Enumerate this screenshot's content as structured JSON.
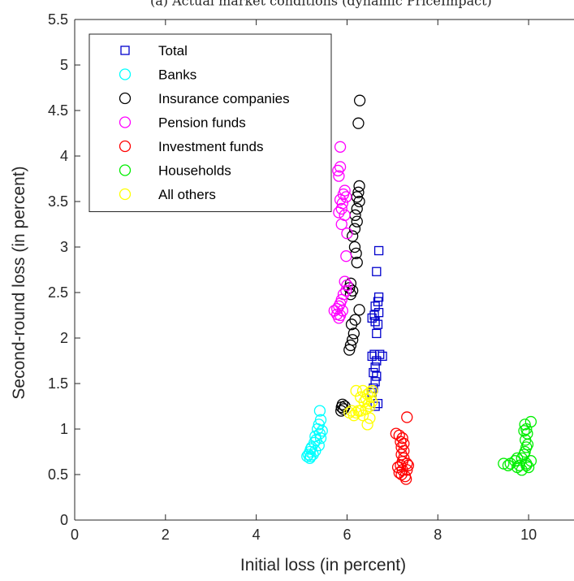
{
  "chart_data": {
    "type": "scatter",
    "title": "(a) Actual market conditions (dynamic PriceImpact)",
    "xlabel": "Initial loss (in percent)",
    "ylabel": "Second-round loss (in percent)",
    "xlim": [
      0,
      11
    ],
    "ylim": [
      0,
      5.5
    ],
    "xticks": [
      0,
      2,
      4,
      6,
      8,
      10
    ],
    "yticks": [
      0,
      0.5,
      1,
      1.5,
      2,
      2.5,
      3,
      3.5,
      4,
      4.5,
      5,
      5.5
    ],
    "xtick_labels": [
      "0",
      "2",
      "4",
      "6",
      "8",
      "10"
    ],
    "ytick_labels": [
      "0",
      "0.5",
      "1",
      "1.5",
      "2",
      "2.5",
      "3",
      "3.5",
      "4",
      "4.5",
      "5",
      "5.5"
    ],
    "grid": false,
    "legend_position": "top-left",
    "series": [
      {
        "name": "Total",
        "marker": "square",
        "color": "#0000cc",
        "points": [
          [
            6.7,
            2.96
          ],
          [
            6.65,
            2.73
          ],
          [
            6.7,
            2.45
          ],
          [
            6.68,
            2.4
          ],
          [
            6.62,
            2.35
          ],
          [
            6.7,
            2.28
          ],
          [
            6.6,
            2.25
          ],
          [
            6.55,
            2.22
          ],
          [
            6.62,
            2.18
          ],
          [
            6.68,
            2.15
          ],
          [
            6.65,
            2.05
          ],
          [
            6.72,
            1.82
          ],
          [
            6.6,
            1.82
          ],
          [
            6.55,
            1.8
          ],
          [
            6.65,
            1.75
          ],
          [
            6.62,
            1.68
          ],
          [
            6.58,
            1.62
          ],
          [
            6.65,
            1.58
          ],
          [
            6.62,
            1.52
          ],
          [
            6.58,
            1.45
          ],
          [
            6.55,
            1.4
          ],
          [
            6.68,
            1.28
          ],
          [
            6.62,
            1.25
          ],
          [
            6.78,
            1.8
          ]
        ]
      },
      {
        "name": "Banks",
        "marker": "circle",
        "color": "#00ffff",
        "points": [
          [
            5.4,
            1.2
          ],
          [
            5.42,
            1.1
          ],
          [
            5.38,
            1.05
          ],
          [
            5.35,
            1.0
          ],
          [
            5.4,
            0.95
          ],
          [
            5.3,
            0.92
          ],
          [
            5.32,
            0.88
          ],
          [
            5.28,
            0.85
          ],
          [
            5.22,
            0.8
          ],
          [
            5.2,
            0.78
          ],
          [
            5.18,
            0.75
          ],
          [
            5.15,
            0.72
          ],
          [
            5.2,
            0.7
          ],
          [
            5.12,
            0.7
          ],
          [
            5.18,
            0.68
          ],
          [
            5.25,
            0.72
          ],
          [
            5.3,
            0.76
          ],
          [
            5.38,
            0.82
          ],
          [
            5.42,
            0.9
          ],
          [
            5.45,
            0.98
          ]
        ]
      },
      {
        "name": "Insurance companies",
        "marker": "circle",
        "color": "#000000",
        "points": [
          [
            6.28,
            4.61
          ],
          [
            6.25,
            4.36
          ],
          [
            6.27,
            3.67
          ],
          [
            6.25,
            3.6
          ],
          [
            6.22,
            3.55
          ],
          [
            6.27,
            3.5
          ],
          [
            6.22,
            3.42
          ],
          [
            6.18,
            3.35
          ],
          [
            6.22,
            3.28
          ],
          [
            6.17,
            3.2
          ],
          [
            6.12,
            3.12
          ],
          [
            6.17,
            3.0
          ],
          [
            6.2,
            2.93
          ],
          [
            6.22,
            2.83
          ],
          [
            6.08,
            2.6
          ],
          [
            6.05,
            2.55
          ],
          [
            6.12,
            2.52
          ],
          [
            6.08,
            2.48
          ],
          [
            6.27,
            2.31
          ],
          [
            6.18,
            2.2
          ],
          [
            6.1,
            2.15
          ],
          [
            6.15,
            2.05
          ],
          [
            6.12,
            1.98
          ],
          [
            6.08,
            1.92
          ],
          [
            6.05,
            1.87
          ],
          [
            5.9,
            1.27
          ],
          [
            5.88,
            1.24
          ],
          [
            5.92,
            1.22
          ],
          [
            5.87,
            1.2
          ],
          [
            5.95,
            1.25
          ]
        ]
      },
      {
        "name": "Pension funds",
        "marker": "circle",
        "color": "#ff00ff",
        "points": [
          [
            5.85,
            4.1
          ],
          [
            5.85,
            3.88
          ],
          [
            5.8,
            3.84
          ],
          [
            5.82,
            3.78
          ],
          [
            5.95,
            3.62
          ],
          [
            5.92,
            3.58
          ],
          [
            5.98,
            3.55
          ],
          [
            5.85,
            3.52
          ],
          [
            5.9,
            3.48
          ],
          [
            5.88,
            3.42
          ],
          [
            5.82,
            3.38
          ],
          [
            5.95,
            3.35
          ],
          [
            5.88,
            3.25
          ],
          [
            6.0,
            3.15
          ],
          [
            5.98,
            2.9
          ],
          [
            5.95,
            2.62
          ],
          [
            6.0,
            2.58
          ],
          [
            5.98,
            2.52
          ],
          [
            5.92,
            2.48
          ],
          [
            5.88,
            2.42
          ],
          [
            5.85,
            2.38
          ],
          [
            5.82,
            2.35
          ],
          [
            5.78,
            2.32
          ],
          [
            5.72,
            2.3
          ],
          [
            5.78,
            2.26
          ],
          [
            5.82,
            2.22
          ],
          [
            5.85,
            2.25
          ],
          [
            5.9,
            2.3
          ]
        ]
      },
      {
        "name": "Investment funds",
        "marker": "circle",
        "color": "#ff0000",
        "points": [
          [
            7.32,
            1.13
          ],
          [
            7.08,
            0.95
          ],
          [
            7.15,
            0.93
          ],
          [
            7.22,
            0.9
          ],
          [
            7.18,
            0.86
          ],
          [
            7.25,
            0.84
          ],
          [
            7.2,
            0.8
          ],
          [
            7.25,
            0.76
          ],
          [
            7.2,
            0.72
          ],
          [
            7.25,
            0.68
          ],
          [
            7.22,
            0.64
          ],
          [
            7.32,
            0.62
          ],
          [
            7.18,
            0.6
          ],
          [
            7.22,
            0.55
          ],
          [
            7.15,
            0.52
          ],
          [
            7.2,
            0.5
          ],
          [
            7.28,
            0.48
          ],
          [
            7.3,
            0.45
          ],
          [
            7.35,
            0.6
          ],
          [
            7.32,
            0.55
          ],
          [
            7.12,
            0.58
          ]
        ]
      },
      {
        "name": "Households",
        "marker": "circle",
        "color": "#00ee00",
        "points": [
          [
            10.05,
            1.08
          ],
          [
            9.92,
            1.05
          ],
          [
            9.95,
            1.0
          ],
          [
            9.9,
            0.98
          ],
          [
            9.97,
            0.95
          ],
          [
            9.93,
            0.88
          ],
          [
            9.98,
            0.83
          ],
          [
            9.95,
            0.8
          ],
          [
            9.92,
            0.75
          ],
          [
            9.9,
            0.72
          ],
          [
            10.05,
            0.65
          ],
          [
            9.95,
            0.62
          ],
          [
            9.85,
            0.68
          ],
          [
            9.75,
            0.68
          ],
          [
            9.7,
            0.65
          ],
          [
            9.6,
            0.62
          ],
          [
            9.55,
            0.6
          ],
          [
            9.45,
            0.62
          ],
          [
            9.75,
            0.58
          ],
          [
            9.85,
            0.55
          ],
          [
            9.95,
            0.6
          ],
          [
            10.0,
            0.58
          ],
          [
            9.8,
            0.6
          ]
        ]
      },
      {
        "name": "All others",
        "marker": "circle",
        "color": "#ffff00",
        "points": [
          [
            6.55,
            1.42
          ],
          [
            6.5,
            1.4
          ],
          [
            6.45,
            1.38
          ],
          [
            6.35,
            1.42
          ],
          [
            6.2,
            1.42
          ],
          [
            6.3,
            1.35
          ],
          [
            6.42,
            1.33
          ],
          [
            6.38,
            1.3
          ],
          [
            6.48,
            1.28
          ],
          [
            6.5,
            1.25
          ],
          [
            6.42,
            1.22
          ],
          [
            6.3,
            1.2
          ],
          [
            6.2,
            1.18
          ],
          [
            6.1,
            1.2
          ],
          [
            6.05,
            1.18
          ],
          [
            6.15,
            1.15
          ],
          [
            6.25,
            1.2
          ],
          [
            6.35,
            1.15
          ],
          [
            6.5,
            1.12
          ],
          [
            6.45,
            1.05
          ],
          [
            6.55,
            1.3
          ],
          [
            6.52,
            1.35
          ]
        ]
      }
    ]
  }
}
